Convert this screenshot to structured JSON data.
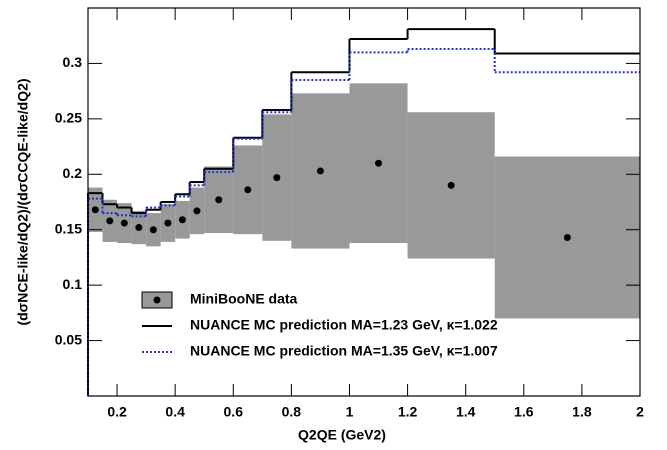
{
  "chart_data": {
    "type": "histogram",
    "x_label": "Q2QE (GeV2)",
    "y_label": "(dσNCE-like/dQ2)/(dσCCQE-like/dQ2)",
    "bins": [
      0.1,
      0.15,
      0.2,
      0.25,
      0.3,
      0.35,
      0.4,
      0.45,
      0.5,
      0.6,
      0.7,
      0.8,
      1.0,
      1.2,
      1.5,
      2.0
    ],
    "series": [
      {
        "name": "MiniBooNE data",
        "color": "#000000",
        "band_color": "#999999",
        "marker": "circle",
        "values": [
          0.168,
          0.158,
          0.156,
          0.152,
          0.15,
          0.156,
          0.159,
          0.167,
          0.177,
          0.186,
          0.197,
          0.203,
          0.21,
          0.19,
          0.143
        ],
        "errors": [
          0.02,
          0.019,
          0.018,
          0.015,
          0.015,
          0.017,
          0.017,
          0.021,
          0.03,
          0.04,
          0.057,
          0.07,
          0.072,
          0.066,
          0.073
        ]
      },
      {
        "name": "NUANCE MC prediction MA=1.23 GeV, κ=1.022",
        "color": "#000000",
        "line_style": "solid",
        "values": [
          0.183,
          0.173,
          0.17,
          0.165,
          0.168,
          0.175,
          0.182,
          0.193,
          0.205,
          0.233,
          0.258,
          0.292,
          0.322,
          0.331,
          0.309
        ]
      },
      {
        "name": "NUANCE MC prediction MA=1.35 GeV, κ=1.007",
        "color": "#2233cc",
        "line_style": "dotted",
        "values": [
          0.178,
          0.165,
          0.163,
          0.162,
          0.17,
          0.172,
          0.18,
          0.19,
          0.202,
          0.232,
          0.256,
          0.285,
          0.31,
          0.313,
          0.292
        ]
      }
    ],
    "xlim": [
      0.1,
      2.0
    ],
    "ylim": [
      0,
      0.35
    ],
    "xticks": [
      0.2,
      0.4,
      0.6,
      0.8,
      1,
      1.2,
      1.4,
      1.6,
      1.8,
      2
    ],
    "yticks": [
      0.05,
      0.1,
      0.15,
      0.2,
      0.25,
      0.3
    ],
    "legend": "bottom-left"
  }
}
